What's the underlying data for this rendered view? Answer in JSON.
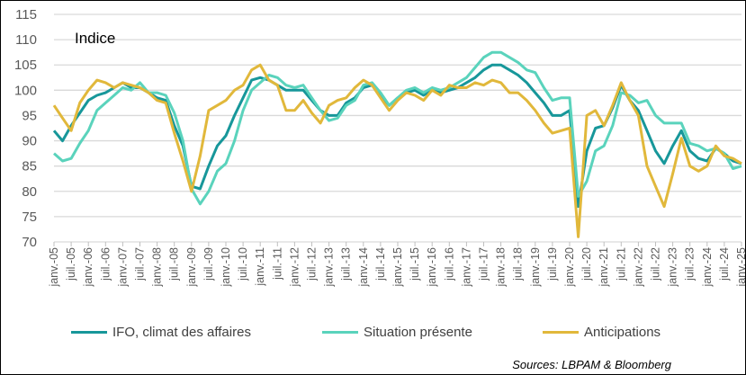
{
  "chart_data": {
    "type": "line",
    "annotation": "Indice",
    "source": "Sources: LBPAM & Bloomberg",
    "ylim": [
      70,
      115
    ],
    "yticks": [
      70,
      75,
      80,
      85,
      90,
      95,
      100,
      105,
      110,
      115
    ],
    "grid": true,
    "legend_placement": "bottom",
    "xtick_labels": [
      "janv.-05",
      "juil.-05",
      "janv.-06",
      "juil.-06",
      "janv.-07",
      "juil.-07",
      "janv.-08",
      "juil.-08",
      "janv.-09",
      "juil.-09",
      "janv.-10",
      "juil.-10",
      "janv.-11",
      "juil.-11",
      "janv.-12",
      "juil.-12",
      "janv.-13",
      "juil.-13",
      "janv.-14",
      "juil.-14",
      "janv.-15",
      "juil.-15",
      "janv.-16",
      "juil.-16",
      "janv.-17",
      "juil.-17",
      "janv.-18",
      "juil.-18",
      "janv.-19",
      "juil.-19",
      "janv.-20",
      "juil.-20",
      "janv.-21",
      "juil.-21",
      "janv.-22",
      "juil.-22",
      "janv.-23",
      "juil.-23",
      "janv.-24",
      "juil.-24",
      "janv.-25"
    ],
    "x_frequency": "quarterly, janv.-05 to janv.-25",
    "series": [
      {
        "name": "IFO, climat des affaires",
        "color": "#17979a",
        "values": [
          92,
          90,
          93,
          95.5,
          98,
          99,
          99.5,
          100.5,
          101.5,
          100.5,
          100.5,
          99.5,
          98.5,
          98,
          93,
          89,
          81,
          80.5,
          85,
          89,
          91,
          95,
          98.5,
          102,
          102.5,
          102,
          101,
          100,
          100,
          100,
          98,
          96,
          95,
          95,
          97.5,
          98.5,
          100.5,
          101,
          99,
          97,
          98.5,
          99.5,
          100,
          99,
          100,
          99.5,
          100,
          100.5,
          101.5,
          102.5,
          104,
          105,
          105,
          104,
          103,
          101.5,
          99.5,
          97.5,
          95,
          95,
          96,
          77,
          88,
          92.5,
          93,
          96.5,
          101,
          98,
          96,
          92,
          88,
          85.5,
          89,
          92,
          88,
          86.5,
          86,
          88.5,
          87.5,
          86,
          85.5
        ]
      },
      {
        "name": "Situation présente",
        "color": "#5ad3bc",
        "values": [
          87.5,
          86,
          86.5,
          89.5,
          92,
          96,
          97.5,
          99,
          100.5,
          100,
          101.5,
          99.5,
          99.5,
          99,
          95.5,
          90,
          80.5,
          77.5,
          80,
          84,
          85.5,
          90,
          96,
          100,
          101.5,
          103,
          102.5,
          101,
          100.5,
          101,
          98.5,
          96,
          94,
          94.5,
          97,
          98,
          101,
          101.5,
          99.5,
          97,
          98.5,
          100,
          100.5,
          99.5,
          100.5,
          100,
          100.5,
          101.5,
          102.5,
          104.5,
          106.5,
          107.5,
          107.5,
          106.5,
          105.5,
          104,
          103.5,
          100.5,
          98,
          98.5,
          98.5,
          79,
          82,
          88,
          89,
          93,
          99.5,
          99,
          97.5,
          98,
          95,
          93.5,
          93.5,
          93.5,
          89.5,
          89,
          88,
          88.5,
          87.5,
          84.5,
          85
        ]
      },
      {
        "name": "Anticipations",
        "color": "#e1b83b",
        "values": [
          97,
          94.5,
          92,
          97.5,
          100,
          102,
          101.5,
          100.5,
          101.5,
          101,
          100.5,
          99.5,
          98,
          97.5,
          91.5,
          86,
          80,
          87,
          96,
          97,
          98,
          100,
          101,
          104,
          105,
          102,
          101,
          96,
          96,
          98,
          95.5,
          93.5,
          97,
          98,
          98.5,
          100.5,
          102,
          101,
          98.5,
          96,
          98,
          99.5,
          99,
          98,
          100,
          99,
          101,
          100.5,
          100.5,
          101.5,
          101,
          102,
          101.5,
          99.5,
          99.5,
          98,
          96,
          93.5,
          91.5,
          92,
          92.5,
          71,
          95,
          96,
          93,
          97,
          101.5,
          98,
          95,
          85,
          81,
          77,
          83.5,
          90.5,
          85,
          84,
          85,
          89,
          87,
          86.5,
          85.5
        ]
      }
    ]
  }
}
